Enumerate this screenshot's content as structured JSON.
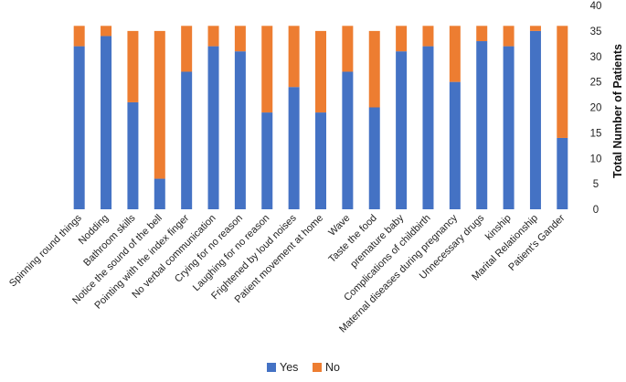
{
  "chart_data": {
    "type": "bar",
    "stacked": true,
    "title": "",
    "xlabel": "",
    "ylabel": "Total Number of Patients",
    "ylim": [
      0,
      40
    ],
    "yticks": [
      0,
      5,
      10,
      15,
      20,
      25,
      30,
      35,
      40
    ],
    "y_axis_position": "right",
    "legend_position": "bottom",
    "grid": false,
    "categories": [
      "Spinning round things",
      "Nodding",
      "Bathroom skills",
      "Notice the sound of the bell",
      "Pointing with the index finger",
      "No verbal communication",
      "Crying for no reason",
      "Laughing for no reason",
      "Frightened by loud noises",
      "Patient movement at home",
      "Wave",
      "Taste the food",
      "premature baby",
      "Complications of childbirth",
      "Maternal diseases during pregnancy",
      "Unnecessary  drugs",
      "kinship",
      "Marital Relationship",
      "Patient's Gander"
    ],
    "series": [
      {
        "name": "Yes",
        "color": "#4472C4",
        "values": [
          32,
          34,
          21,
          6,
          27,
          32,
          31,
          19,
          24,
          19,
          27,
          20,
          31,
          32,
          25,
          33,
          32,
          35,
          14
        ]
      },
      {
        "name": "No",
        "color": "#ED7D31",
        "values": [
          4,
          2,
          14,
          29,
          9,
          4,
          5,
          17,
          12,
          16,
          9,
          15,
          5,
          4,
          11,
          3,
          4,
          1,
          22
        ]
      }
    ]
  }
}
